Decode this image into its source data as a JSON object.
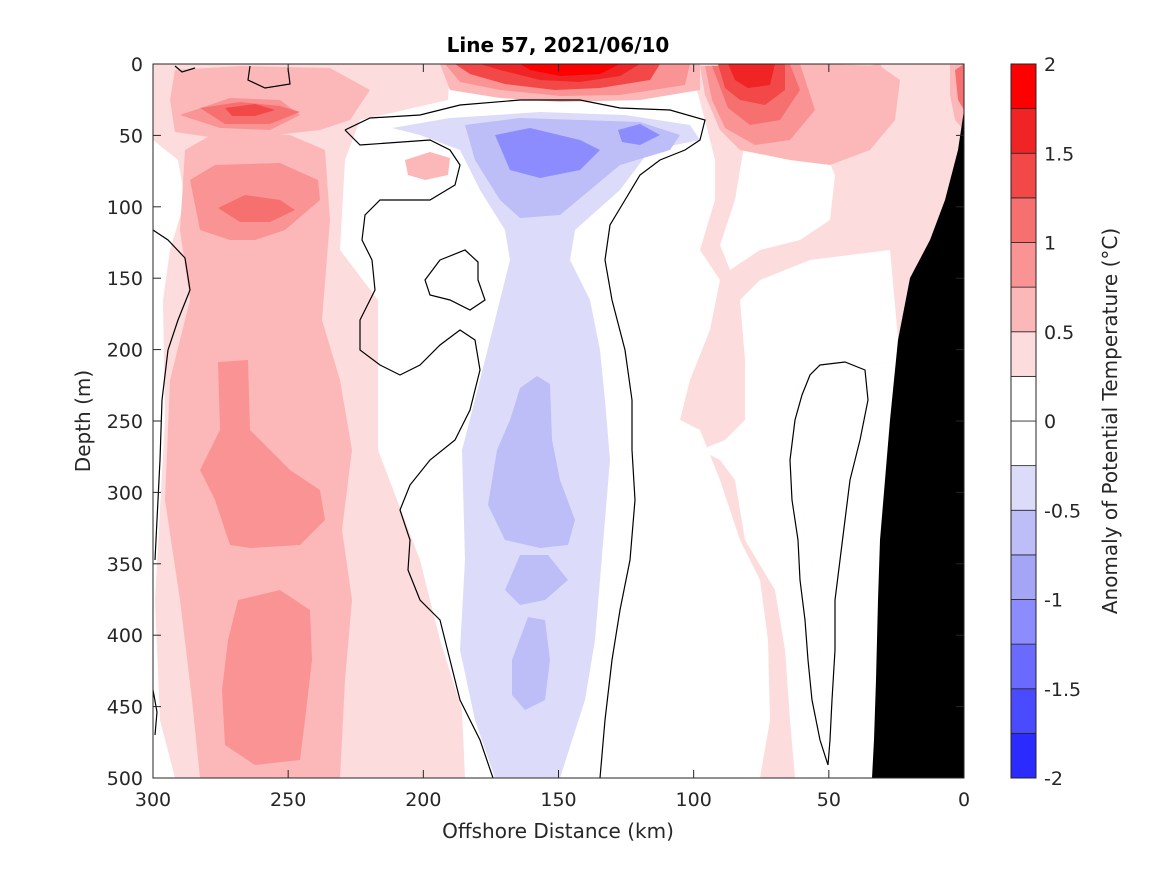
{
  "chart_data": {
    "type": "heatmap",
    "title": "Line 57, 2021/06/10",
    "xlabel": "Offshore Distance (km)",
    "ylabel": "Depth (m)",
    "colorbar_label": "Anomaly of Potential Temperature (°C)",
    "xlim": [
      300,
      0
    ],
    "x_reversed": true,
    "ylim": [
      0,
      500
    ],
    "y_reversed": true,
    "x_ticks": [
      "300",
      "250",
      "200",
      "150",
      "100",
      "50",
      "0"
    ],
    "x_tick_values": [
      300,
      250,
      200,
      150,
      100,
      50,
      0
    ],
    "y_ticks": [
      "0",
      "50",
      "100",
      "150",
      "200",
      "250",
      "300",
      "350",
      "400",
      "450",
      "500"
    ],
    "y_tick_values": [
      0,
      50,
      100,
      150,
      200,
      250,
      300,
      350,
      400,
      450,
      500
    ],
    "colorbar": {
      "range": [
        -2,
        2
      ],
      "ticks": [
        "2",
        "1.5",
        "1",
        "0.5",
        "0",
        "-0.5",
        "-1",
        "-1.5",
        "-2"
      ],
      "tick_values": [
        2,
        1.5,
        1,
        0.5,
        0,
        -0.5,
        -1,
        -1.5,
        -2
      ],
      "levels": [
        -2,
        -1.75,
        -1.5,
        -1.25,
        -1,
        -0.75,
        -0.5,
        -0.25,
        0,
        0.25,
        0.5,
        0.75,
        1,
        1.25,
        1.5,
        1.75,
        2
      ],
      "colors": [
        "#0000ff",
        "#2b2bff",
        "#4a4aff",
        "#6a6aff",
        "#8c8cff",
        "#a5a5f5",
        "#bdbdf7",
        "#dcdcfa",
        "#ffffff",
        "#ffffff",
        "#fcdcdc",
        "#fcb8b8",
        "#fa9494",
        "#f77070",
        "#f24848",
        "#f02424",
        "#ff0000"
      ]
    },
    "bathymetry_color": "#000000",
    "contour_line_level": 0,
    "features": [
      {
        "kind": "warm",
        "level": 0.75,
        "x": 260,
        "depth_range": [
          80,
          500
        ]
      },
      {
        "kind": "warm",
        "level": 1.25,
        "x": 265,
        "depth": 100
      },
      {
        "kind": "warm",
        "level": 1.25,
        "x": 270,
        "depth": 30
      },
      {
        "kind": "warm",
        "level": 2.0,
        "x": 145,
        "depth": 5
      },
      {
        "kind": "warm",
        "level": 2.0,
        "x": 80,
        "depth": 10
      },
      {
        "kind": "cool",
        "level": -1.0,
        "x": 148,
        "depth": 60
      },
      {
        "kind": "cool",
        "level": -0.5,
        "x": 150,
        "depth_range": [
          50,
          500
        ]
      },
      {
        "kind": "cool",
        "level": -0.75,
        "x": 155,
        "depth_range": [
          220,
          450
        ]
      }
    ]
  }
}
